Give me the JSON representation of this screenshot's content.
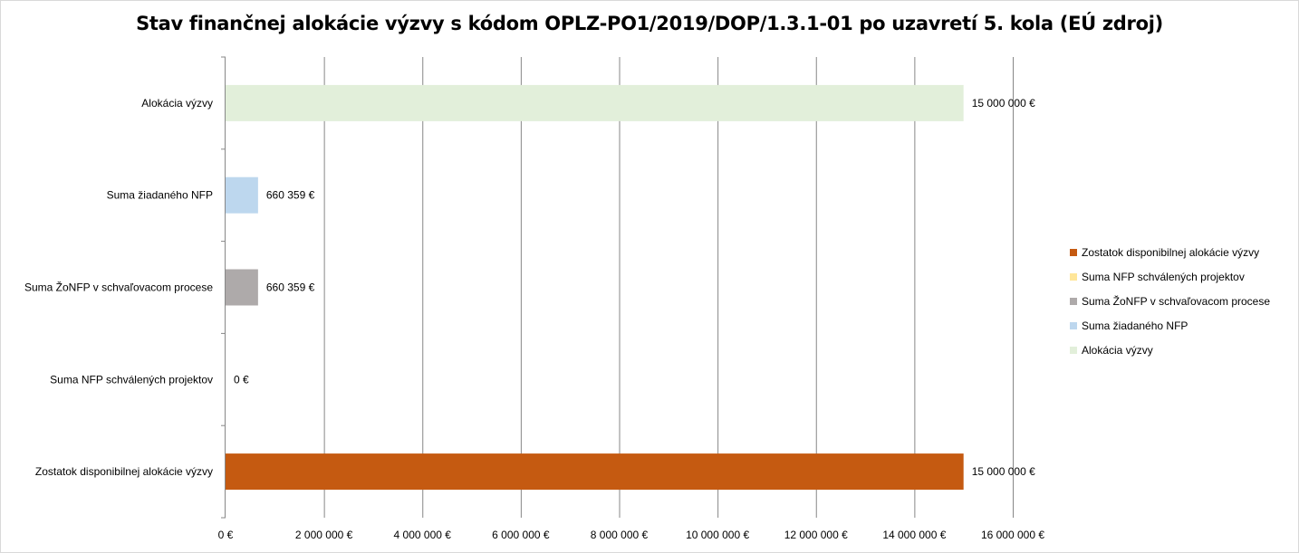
{
  "chart_data": {
    "type": "bar",
    "orientation": "horizontal",
    "title": "Stav finančnej alokácie výzvy s kódom OPLZ-PO1/2019/DOP/1.3.1-01 po uzavretí 5. kola (EÚ zdroj)",
    "categories": [
      "Alokácia výzvy",
      "Suma žiadaného NFP",
      "Suma ŽoNFP v schvaľovacom procese",
      "Suma NFP schválených projektov",
      "Zostatok disponibilnej alokácie výzvy"
    ],
    "values": [
      15000000,
      660359,
      660359,
      0,
      15000000
    ],
    "value_labels": [
      "15 000 000 €",
      "660 359 €",
      "660 359 €",
      "0 €",
      "15 000 000 €"
    ],
    "colors": [
      "#e2efda",
      "#bdd7ee",
      "#aeaaaa",
      "#ffe699",
      "#c55a11"
    ],
    "xlim": [
      0,
      16000000
    ],
    "x_ticks": [
      0,
      2000000,
      4000000,
      6000000,
      8000000,
      10000000,
      12000000,
      14000000,
      16000000
    ],
    "x_tick_labels": [
      "0 €",
      "2 000 000 €",
      "4 000 000 €",
      "6 000 000 €",
      "8 000 000 €",
      "10 000 000 €",
      "12 000 000 €",
      "14 000 000 €",
      "16 000 000 €"
    ],
    "xlabel": "",
    "ylabel": "",
    "grid": true,
    "legend_position": "right",
    "legend": [
      {
        "label": "Zostatok disponibilnej alokácie výzvy",
        "color": "#c55a11"
      },
      {
        "label": "Suma NFP schválených projektov",
        "color": "#ffe699"
      },
      {
        "label": "Suma ŽoNFP v schvaľovacom procese",
        "color": "#aeaaaa"
      },
      {
        "label": "Suma žiadaného NFP",
        "color": "#bdd7ee"
      },
      {
        "label": "Alokácia výzvy",
        "color": "#e2efda"
      }
    ]
  }
}
